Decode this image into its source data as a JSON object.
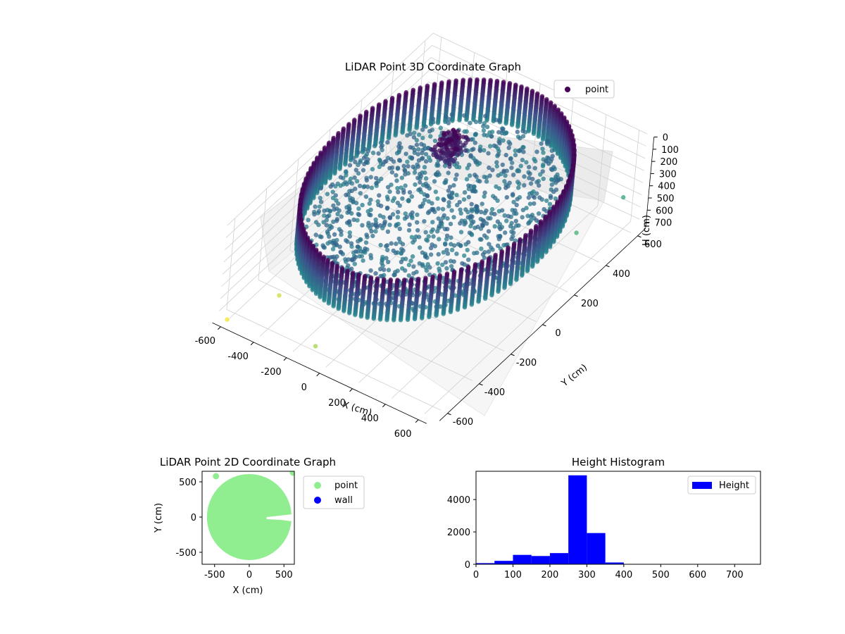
{
  "chart_data": [
    {
      "type": "scatter",
      "title": "LiDAR Point 3D Coordinate Graph",
      "xlabel": "X (cm)",
      "ylabel": "Y (cm)",
      "zlabel": "H (cm)",
      "xticks": [
        "-600",
        "-400",
        "-200",
        "0",
        "200",
        "400",
        "600"
      ],
      "yticks": [
        "-600",
        "-400",
        "-200",
        "0",
        "200",
        "400",
        "600"
      ],
      "zticks": [
        "0",
        "100",
        "200",
        "300",
        "400",
        "500",
        "600",
        "700"
      ],
      "xlim": [
        -650,
        650
      ],
      "ylim": [
        -650,
        650
      ],
      "zlim": [
        0,
        750
      ],
      "z_inverted": true,
      "colormap": "viridis",
      "grid": true,
      "legend": {
        "position": "top-right",
        "entries": [
          {
            "name": "point",
            "color": "#440154"
          }
        ]
      },
      "structure": {
        "ring_radius": 600,
        "ring_height_range": [
          0,
          330
        ]
      },
      "outliers": [
        {
          "x": -600,
          "y": -650,
          "z": 740
        },
        {
          "x": -470,
          "y": -460,
          "z": 690
        },
        {
          "x": -80,
          "y": -640,
          "z": 640
        },
        {
          "x": 160,
          "y": -320,
          "z": 420
        },
        {
          "x": 450,
          "y": 100,
          "z": 560
        },
        {
          "x": 560,
          "y": 330,
          "z": 480
        },
        {
          "x": 620,
          "y": 560,
          "z": 430
        }
      ]
    },
    {
      "type": "scatter",
      "title": "LiDAR Point 2D Coordinate Graph",
      "xlabel": "X (cm)",
      "ylabel": "Y (cm)",
      "xticks": [
        "-500",
        "0",
        "500"
      ],
      "yticks": [
        "-500",
        "0",
        "500"
      ],
      "xlim": [
        -680,
        650
      ],
      "ylim": [
        -670,
        650
      ],
      "legend": {
        "position": "right",
        "entries": [
          {
            "name": "point",
            "color": "#90ee90"
          },
          {
            "name": "wall",
            "color": "#0000ff"
          }
        ]
      },
      "point_cloud": {
        "shape": "disk",
        "center": [
          0,
          0
        ],
        "radius": 610,
        "gap_polygon": [
          [
            250,
            0
          ],
          [
            620,
            40
          ],
          [
            620,
            -60
          ],
          [
            450,
            -40
          ],
          [
            250,
            -30
          ]
        ]
      },
      "outliers": [
        {
          "x": -480,
          "y": 580
        },
        {
          "x": 630,
          "y": 630
        }
      ]
    },
    {
      "type": "bar",
      "title": "Height Histogram",
      "xlabel": "",
      "ylabel": "",
      "xticks": [
        "0",
        "100",
        "200",
        "300",
        "400",
        "500",
        "600",
        "700"
      ],
      "yticks": [
        "0",
        "2000",
        "4000"
      ],
      "xlim": [
        0,
        770
      ],
      "ylim": [
        0,
        5750
      ],
      "bin_width": 50,
      "bins": [
        0,
        50,
        100,
        150,
        200,
        250,
        300,
        350,
        400,
        450,
        500,
        550,
        600,
        650,
        700
      ],
      "values": [
        70,
        210,
        580,
        510,
        690,
        5500,
        1930,
        110,
        10,
        5,
        3,
        3,
        3,
        3,
        3
      ],
      "series": [
        {
          "name": "Height",
          "color": "#0000ff"
        }
      ],
      "legend": {
        "position": "top-right"
      }
    }
  ]
}
